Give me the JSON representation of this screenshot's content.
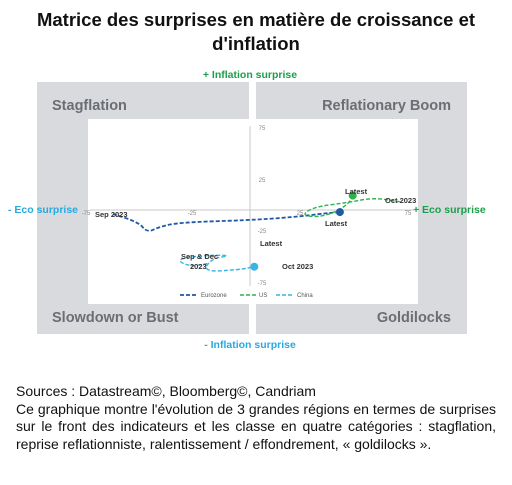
{
  "page_title": "Matrice des surprises en matière de croissance et d'inflation",
  "colors": {
    "eurozone": "#1f5aa6",
    "us": "#2db34a",
    "china": "#35b6e6",
    "green_text": "#1aa04a",
    "cyan_text": "#29a9df",
    "quadrant_bg": "#d8dadd",
    "quadrant_text": "#6b6e72"
  },
  "chart_data": {
    "type": "line",
    "axis_labels": {
      "top": "+ Inflation surprise",
      "bottom": "- Inflation surprise",
      "left": "- Eco surprise",
      "right": "+ Eco surprise"
    },
    "quadrants": {
      "top_left": "Stagflation",
      "top_right": "Reflationary Boom",
      "bottom_left": "Slowdown or Bust",
      "bottom_right": "Goldilocks"
    },
    "xlim": [
      -75,
      75
    ],
    "ylim": [
      -75,
      75
    ],
    "x_ticks": [
      "-75",
      "-25",
      "25",
      "75"
    ],
    "y_ticks": [
      "75",
      "25",
      "-25",
      "-75"
    ],
    "legend": [
      "Eurozone",
      "US",
      "China"
    ],
    "legend_position": "bottom",
    "series": [
      {
        "name": "Eurozone",
        "x": [
          -64,
          -52,
          -48,
          -42,
          -32,
          -2,
          20,
          36,
          42
        ],
        "y": [
          -4,
          -12,
          -22,
          -16,
          -12,
          -10,
          -7,
          -3,
          -2
        ]
      },
      {
        "name": "US",
        "x": [
          70,
          58,
          45,
          30,
          24,
          32,
          40,
          46,
          48
        ],
        "y": [
          8,
          12,
          7,
          3,
          -5,
          -7,
          -2,
          6,
          14
        ]
      },
      {
        "name": "China",
        "x": [
          -20,
          -28,
          -35,
          -22,
          -8,
          -18,
          -22,
          -5,
          2
        ],
        "y": [
          -52,
          -55,
          -48,
          -44,
          -44,
          -47,
          -60,
          -58,
          -55
        ]
      }
    ],
    "annotations": [
      {
        "text": "Sep 2023",
        "series": "Eurozone"
      },
      {
        "text": "Latest",
        "series": "Eurozone"
      },
      {
        "text": "Latest",
        "series": "US"
      },
      {
        "text": "Oct 2023",
        "series": "US"
      },
      {
        "text": "Latest",
        "series": "China"
      },
      {
        "text": "Sep & Dec",
        "series": "China"
      },
      {
        "text": "2023",
        "series": "China"
      },
      {
        "text": "Oct 2023",
        "series": "China"
      }
    ]
  },
  "sources": "Sources : Datastream©, Bloomberg©, Candriam",
  "description": "Ce graphique montre l'évolution de 3 grandes régions en termes de surprises sur le front des indicateurs et les classe en quatre catégories : stagflation, reprise reflationniste, ralentissement / effondrement, « goldilocks »."
}
